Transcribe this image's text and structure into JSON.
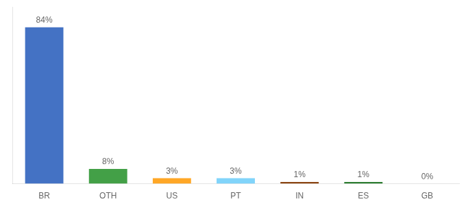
{
  "chart_data": {
    "type": "bar",
    "categories": [
      "BR",
      "OTH",
      "US",
      "PT",
      "IN",
      "ES",
      "GB"
    ],
    "values": [
      84,
      8,
      3,
      3,
      1,
      1,
      0
    ],
    "value_labels": [
      "84%",
      "8%",
      "3%",
      "3%",
      "1%",
      "1%",
      "0%"
    ],
    "colors": [
      "#4472C4",
      "#43A047",
      "#FFA726",
      "#81D4FA",
      "#8B4513",
      "#2E7D32",
      "#AAAAAA"
    ],
    "ylim": [
      0,
      95
    ],
    "grid": false,
    "legend": false,
    "data_labels": true,
    "tick_labels": "x"
  }
}
